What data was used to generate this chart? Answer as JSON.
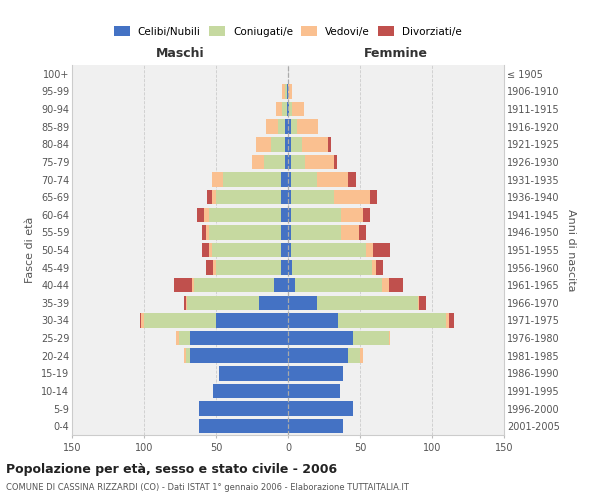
{
  "age_groups": [
    "0-4",
    "5-9",
    "10-14",
    "15-19",
    "20-24",
    "25-29",
    "30-34",
    "35-39",
    "40-44",
    "45-49",
    "50-54",
    "55-59",
    "60-64",
    "65-69",
    "70-74",
    "75-79",
    "80-84",
    "85-89",
    "90-94",
    "95-99",
    "100+"
  ],
  "birth_years": [
    "2001-2005",
    "1996-2000",
    "1991-1995",
    "1986-1990",
    "1981-1985",
    "1976-1980",
    "1971-1975",
    "1966-1970",
    "1961-1965",
    "1956-1960",
    "1951-1955",
    "1946-1950",
    "1941-1945",
    "1936-1940",
    "1931-1935",
    "1926-1930",
    "1921-1925",
    "1916-1920",
    "1911-1915",
    "1906-1910",
    "≤ 1905"
  ],
  "maschi": {
    "celibi": [
      62,
      62,
      52,
      48,
      68,
      68,
      50,
      20,
      10,
      5,
      5,
      5,
      5,
      5,
      5,
      2,
      2,
      2,
      1,
      1,
      0
    ],
    "coniugati": [
      0,
      0,
      0,
      0,
      3,
      8,
      50,
      50,
      55,
      45,
      48,
      50,
      50,
      45,
      40,
      15,
      10,
      5,
      3,
      1,
      0
    ],
    "vedovi": [
      0,
      0,
      0,
      0,
      1,
      2,
      2,
      1,
      2,
      2,
      2,
      2,
      3,
      3,
      8,
      8,
      10,
      8,
      4,
      2,
      0
    ],
    "divorziati": [
      0,
      0,
      0,
      0,
      0,
      0,
      1,
      1,
      12,
      5,
      5,
      3,
      5,
      3,
      0,
      0,
      0,
      0,
      0,
      0,
      0
    ]
  },
  "femmine": {
    "nubili": [
      38,
      45,
      36,
      38,
      42,
      45,
      35,
      20,
      5,
      3,
      2,
      2,
      2,
      2,
      2,
      2,
      2,
      2,
      1,
      0,
      0
    ],
    "coniugate": [
      0,
      0,
      0,
      0,
      8,
      25,
      75,
      70,
      60,
      55,
      52,
      35,
      35,
      30,
      18,
      10,
      8,
      4,
      2,
      0,
      0
    ],
    "vedove": [
      0,
      0,
      0,
      0,
      2,
      1,
      2,
      1,
      5,
      3,
      5,
      12,
      15,
      25,
      22,
      20,
      18,
      15,
      8,
      3,
      0
    ],
    "divorziate": [
      0,
      0,
      0,
      0,
      0,
      0,
      3,
      5,
      10,
      5,
      12,
      5,
      5,
      5,
      5,
      2,
      2,
      0,
      0,
      0,
      0
    ]
  },
  "colors": {
    "celibi": "#4472C4",
    "coniugati": "#C6D9A0",
    "vedovi": "#FAC090",
    "divorziati": "#C0504D"
  },
  "xlim": 150,
  "title": "Popolazione per età, sesso e stato civile - 2006",
  "subtitle": "COMUNE DI CASSINA RIZZARDI (CO) - Dati ISTAT 1° gennaio 2006 - Elaborazione TUTTAITALIA.IT",
  "ylabel_left": "Fasce di età",
  "ylabel_right": "Anni di nascita",
  "xlabel_maschi": "Maschi",
  "xlabel_femmine": "Femmine",
  "bg_color": "#f0f0f0",
  "grid_color": "#cccccc",
  "legend_labels": [
    "Celibi/Nubili",
    "Coniugati/e",
    "Vedovi/e",
    "Divorziati/e"
  ]
}
